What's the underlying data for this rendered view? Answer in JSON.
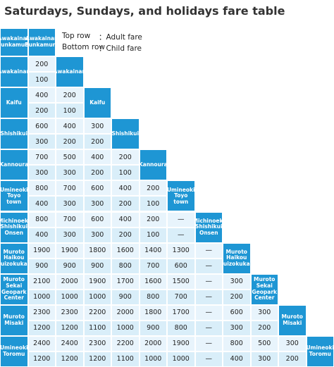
{
  "title": "Saturdays, Sundays, and holidays fare table",
  "legend": [
    {
      "label": "Top row",
      "meaning": "：Adult fare"
    },
    {
      "label": "Bottom row",
      "meaning": "：Child fare"
    }
  ],
  "stations": [
    "Awakainan Bunkamura",
    "Awakainan",
    "Kaifu",
    "Shishikui",
    "Kannoura",
    "Umineoki Toyo town",
    "Michinoeki Shishikui Onsen",
    "Muroto Haikou Suizokukan",
    "Muroto Sekai Geopark Center",
    "Muroto Misaki",
    "Umineoki Toromu"
  ],
  "fares": [
    [
      [
        "200",
        "100"
      ]
    ],
    [
      [
        "400",
        "200"
      ],
      [
        "200",
        "100"
      ]
    ],
    [
      [
        "600",
        "300"
      ],
      [
        "400",
        "200"
      ],
      [
        "300",
        "200"
      ]
    ],
    [
      [
        "700",
        "300"
      ],
      [
        "500",
        "300"
      ],
      [
        "400",
        "200"
      ],
      [
        "200",
        "100"
      ]
    ],
    [
      [
        "800",
        "400"
      ],
      [
        "700",
        "300"
      ],
      [
        "600",
        "300"
      ],
      [
        "400",
        "200"
      ],
      [
        "200",
        "100"
      ]
    ],
    [
      [
        "800",
        "400"
      ],
      [
        "700",
        "300"
      ],
      [
        "600",
        "300"
      ],
      [
        "400",
        "200"
      ],
      [
        "200",
        "100"
      ],
      [
        "—",
        "—"
      ]
    ],
    [
      [
        "1900",
        "900"
      ],
      [
        "1900",
        "900"
      ],
      [
        "1800",
        "900"
      ],
      [
        "1600",
        "800"
      ],
      [
        "1400",
        "700"
      ],
      [
        "1300",
        "600"
      ],
      [
        "—",
        "—"
      ]
    ],
    [
      [
        "2100",
        "1000"
      ],
      [
        "2000",
        "1000"
      ],
      [
        "1900",
        "1000"
      ],
      [
        "1700",
        "900"
      ],
      [
        "1600",
        "800"
      ],
      [
        "1500",
        "700"
      ],
      [
        "—",
        "—"
      ],
      [
        "300",
        "200"
      ]
    ],
    [
      [
        "2300",
        "1200"
      ],
      [
        "2300",
        "1200"
      ],
      [
        "2200",
        "1100"
      ],
      [
        "2000",
        "1000"
      ],
      [
        "1800",
        "900"
      ],
      [
        "1700",
        "800"
      ],
      [
        "—",
        "—"
      ],
      [
        "600",
        "300"
      ],
      [
        "300",
        "200"
      ]
    ],
    [
      [
        "2400",
        "1200"
      ],
      [
        "2400",
        "1200"
      ],
      [
        "2300",
        "1200"
      ],
      [
        "2200",
        "1100"
      ],
      [
        "2000",
        "1000"
      ],
      [
        "1900",
        "1000"
      ],
      [
        "—",
        "—"
      ],
      [
        "800",
        "400"
      ],
      [
        "500",
        "300"
      ],
      [
        "300",
        "200"
      ]
    ]
  ]
}
